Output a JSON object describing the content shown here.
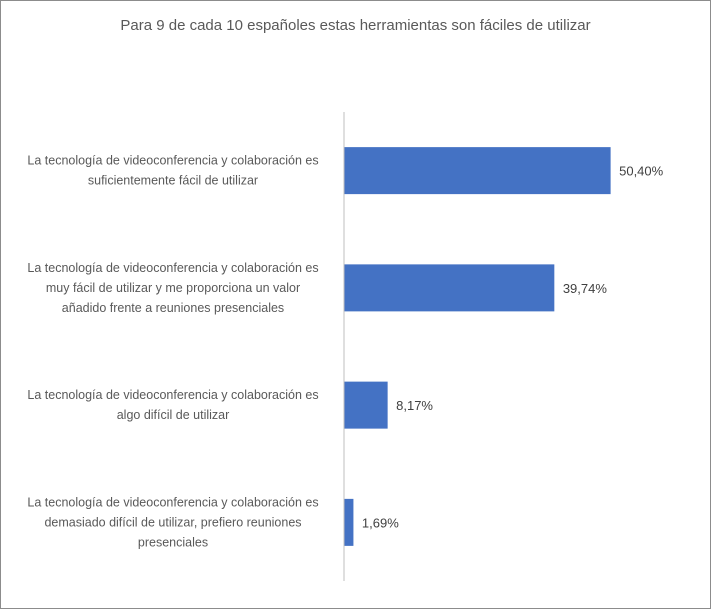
{
  "chart_data": {
    "type": "bar",
    "orientation": "horizontal",
    "title": "Para 9 de cada 10 españoles estas herramientas son fáciles de utilizar",
    "categories": [
      [
        "La tecnología de videoconferencia y colaboración es",
        "suficientemente fácil de utilizar"
      ],
      [
        "La tecnología de videoconferencia y colaboración es",
        "muy fácil de utilizar y me proporciona un valor",
        "añadido frente a reuniones presenciales"
      ],
      [
        "La tecnología de videoconferencia y colaboración es",
        "algo difícil de utilizar"
      ],
      [
        "La tecnología de videoconferencia y colaboración es",
        "demasiado difícil de utilizar, prefiero reuniones",
        "presenciales"
      ]
    ],
    "values": [
      50.4,
      39.74,
      8.17,
      1.69
    ],
    "data_labels": [
      "50,40%",
      "39,74%",
      "8,17%",
      "1,69%"
    ],
    "xlim": [
      0,
      60
    ],
    "grid": false,
    "legend": "none",
    "bar_color": "#4472C4",
    "axis_color": "#bfbfbf"
  }
}
